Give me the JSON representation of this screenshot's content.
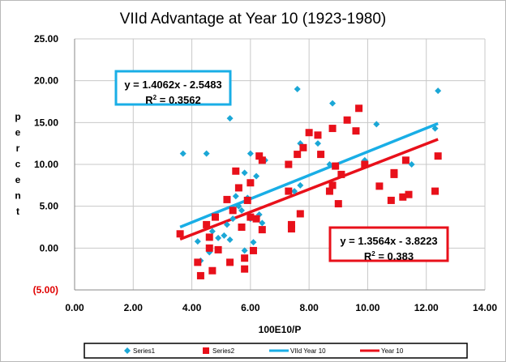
{
  "chart_data": {
    "type": "scatter",
    "title": "VIId Advantage at Year 10 (1923-1980)",
    "xlabel": "100E10/P",
    "ylabel": "Percent",
    "xlim": [
      0,
      14
    ],
    "ylim": [
      -5,
      25
    ],
    "x_ticks": [
      "0.00",
      "2.00",
      "4.00",
      "6.00",
      "8.00",
      "10.00",
      "12.00",
      "14.00"
    ],
    "y_ticks": [
      "(5.00)",
      "0.00",
      "5.00",
      "10.00",
      "15.00",
      "20.00",
      "25.00"
    ],
    "grid": true,
    "legend_position": "bottom",
    "series": [
      {
        "name": "Series1",
        "marker": "diamond",
        "color": "#1ba7d6",
        "points": [
          [
            3.7,
            11.3
          ],
          [
            4.5,
            11.3
          ],
          [
            4.2,
            0.8
          ],
          [
            4.3,
            -1.5
          ],
          [
            4.6,
            -0.5
          ],
          [
            4.7,
            2.0
          ],
          [
            4.8,
            3.8
          ],
          [
            4.9,
            1.2
          ],
          [
            5.1,
            1.5
          ],
          [
            5.2,
            2.8
          ],
          [
            5.3,
            1.0
          ],
          [
            5.3,
            15.5
          ],
          [
            5.4,
            3.5
          ],
          [
            5.5,
            6.2
          ],
          [
            5.6,
            5.0
          ],
          [
            5.7,
            4.5
          ],
          [
            5.8,
            9.0
          ],
          [
            5.8,
            -0.3
          ],
          [
            5.9,
            6.0
          ],
          [
            6.0,
            11.3
          ],
          [
            6.0,
            3.5
          ],
          [
            6.1,
            0.7
          ],
          [
            6.2,
            8.6
          ],
          [
            6.3,
            4.0
          ],
          [
            6.4,
            3.0
          ],
          [
            6.5,
            10.5
          ],
          [
            7.5,
            6.8
          ],
          [
            7.6,
            19.0
          ],
          [
            7.7,
            12.5
          ],
          [
            7.7,
            7.5
          ],
          [
            8.3,
            12.5
          ],
          [
            8.7,
            10.0
          ],
          [
            8.8,
            17.3
          ],
          [
            9.9,
            10.5
          ],
          [
            10.3,
            14.8
          ],
          [
            11.5,
            10.0
          ],
          [
            12.3,
            14.3
          ],
          [
            12.4,
            18.8
          ]
        ]
      },
      {
        "name": "Series2",
        "marker": "square",
        "color": "#e8101a",
        "points": [
          [
            3.6,
            1.7
          ],
          [
            4.2,
            -1.7
          ],
          [
            4.3,
            -3.3
          ],
          [
            4.5,
            2.8
          ],
          [
            4.6,
            0.0
          ],
          [
            4.6,
            1.3
          ],
          [
            4.7,
            -2.7
          ],
          [
            4.8,
            3.7
          ],
          [
            4.9,
            -0.2
          ],
          [
            5.2,
            5.8
          ],
          [
            5.3,
            -1.7
          ],
          [
            5.4,
            4.5
          ],
          [
            5.5,
            9.2
          ],
          [
            5.6,
            7.2
          ],
          [
            5.7,
            2.5
          ],
          [
            5.8,
            -2.5
          ],
          [
            5.8,
            -1.2
          ],
          [
            5.9,
            5.7
          ],
          [
            6.0,
            7.8
          ],
          [
            6.0,
            3.7
          ],
          [
            6.1,
            -0.3
          ],
          [
            6.2,
            3.5
          ],
          [
            6.3,
            11.0
          ],
          [
            6.4,
            10.5
          ],
          [
            6.4,
            2.2
          ],
          [
            7.3,
            6.8
          ],
          [
            7.3,
            10.0
          ],
          [
            7.4,
            2.8
          ],
          [
            7.4,
            2.3
          ],
          [
            7.6,
            11.2
          ],
          [
            7.7,
            4.1
          ],
          [
            7.8,
            12.0
          ],
          [
            8.0,
            13.8
          ],
          [
            8.3,
            13.5
          ],
          [
            8.4,
            11.2
          ],
          [
            8.7,
            6.8
          ],
          [
            8.8,
            7.5
          ],
          [
            8.8,
            14.3
          ],
          [
            8.9,
            9.8
          ],
          [
            9.0,
            5.3
          ],
          [
            9.1,
            8.8
          ],
          [
            9.3,
            15.3
          ],
          [
            9.6,
            14.0
          ],
          [
            9.7,
            16.7
          ],
          [
            9.9,
            10.0
          ],
          [
            10.4,
            7.4
          ],
          [
            10.8,
            5.7
          ],
          [
            10.9,
            8.8
          ],
          [
            10.9,
            9.0
          ],
          [
            11.2,
            6.1
          ],
          [
            11.4,
            6.4
          ],
          [
            11.3,
            10.5
          ],
          [
            12.3,
            6.8
          ],
          [
            12.4,
            11.0
          ]
        ]
      },
      {
        "name": "VIId Year 10",
        "type": "trendline",
        "color": "#19aee6",
        "slope": 1.4062,
        "intercept": -2.5483,
        "x_range": [
          3.6,
          12.4
        ],
        "equation": "y = 1.4062x - 2.5483",
        "r2_label": "R",
        "r2_value": " = 0.3562"
      },
      {
        "name": "Year 10",
        "type": "trendline",
        "color": "#e8101a",
        "slope": 1.3564,
        "intercept": -3.8223,
        "x_range": [
          3.6,
          12.4
        ],
        "equation": "y = 1.3564x - 3.8223",
        "r2_label": "R",
        "r2_value": " = 0.383"
      }
    ]
  }
}
